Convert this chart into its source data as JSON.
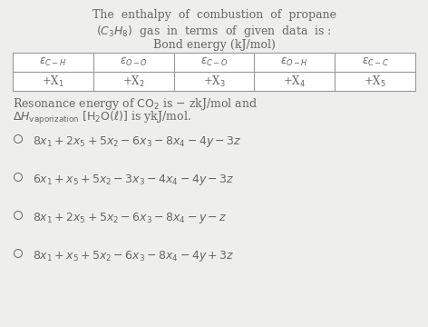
{
  "title_line1": "The  enthalpy  of  combustion  of  propane",
  "title_line2": "$(C_3H_8)$  gas  in  terms  of  given  data  is :",
  "bond_energy_label": "Bond energy (kJ/mol)",
  "table_headers": [
    "$\\varepsilon_{C-H}$",
    "$\\varepsilon_{O-O}$",
    "$\\varepsilon_{C-O}$",
    "$\\varepsilon_{O-H}$",
    "$\\varepsilon_{C-C}$"
  ],
  "table_values": [
    "+X$_1$",
    "+X$_2$",
    "+X$_3$",
    "+X$_4$",
    "+X$_5$"
  ],
  "resonance_text": "Resonance energy of $\\mathrm{CO_2}$ is $-$ zkJ/mol and",
  "vap_text": "$\\Delta H_{\\mathrm{vaporization}}$ $[\\mathrm{H_2O(\\ell)}]$ is ykJ/mol.",
  "options": [
    "$8x_1 + 2x_5 + 5x_2 - 6x_3 - 8x_4 - 4y - 3z$",
    "$6x_1 + x_5 + 5x_2 - 3x_3 - 4x_4 - 4y - 3z$",
    "$8x_1 + 2x_5 + 5x_2 - 6x_3 - 8x_4 - y - z$",
    "$8x_1 + x_5 + 5x_2 - 6x_3 - 8x_4 - 4y + 3z$"
  ],
  "bg_color": "#eeeeec",
  "text_color": "#666666",
  "table_bg": "#ffffff",
  "table_border": "#999999",
  "figw": 4.72,
  "figh": 3.6,
  "dpi": 100
}
